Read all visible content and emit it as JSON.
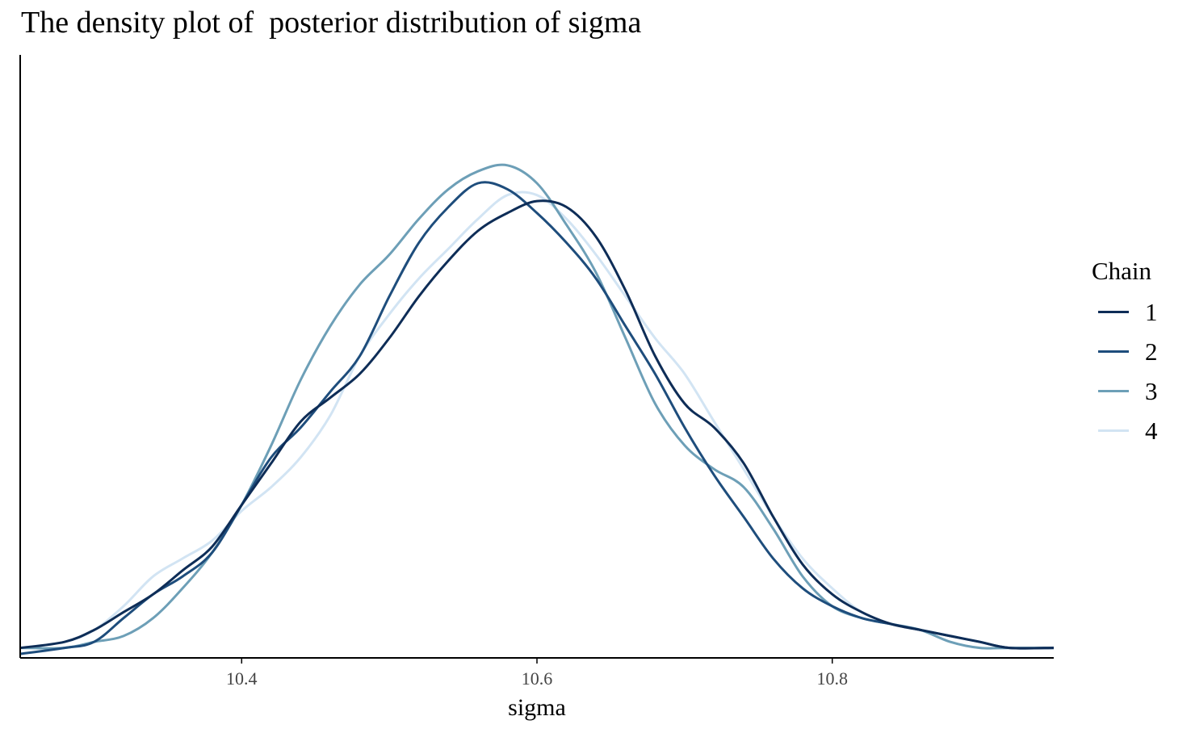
{
  "chart_data": {
    "type": "line",
    "title": "The density plot of  posterior distribution of sigma",
    "xlabel": "sigma",
    "ylabel": "",
    "xlim": [
      10.25,
      10.95
    ],
    "ylim": [
      0,
      1.0
    ],
    "x_ticks": [
      10.4,
      10.6,
      10.8
    ],
    "x_tick_labels": [
      "10.4",
      "10.6",
      "10.8"
    ],
    "grid": false,
    "legend": {
      "title": "Chain",
      "position": "right"
    },
    "series": [
      {
        "name": "1",
        "color": "#0e2d57",
        "x": [
          10.25,
          10.28,
          10.3,
          10.32,
          10.34,
          10.36,
          10.38,
          10.4,
          10.42,
          10.44,
          10.46,
          10.48,
          10.5,
          10.52,
          10.54,
          10.56,
          10.58,
          10.6,
          10.62,
          10.64,
          10.66,
          10.68,
          10.7,
          10.72,
          10.74,
          10.76,
          10.78,
          10.8,
          10.82,
          10.84,
          10.86,
          10.88,
          10.9,
          10.92,
          10.95
        ],
        "y": [
          0.01,
          0.02,
          0.04,
          0.07,
          0.1,
          0.14,
          0.18,
          0.25,
          0.32,
          0.39,
          0.43,
          0.47,
          0.53,
          0.6,
          0.66,
          0.71,
          0.74,
          0.76,
          0.75,
          0.7,
          0.61,
          0.5,
          0.42,
          0.38,
          0.32,
          0.23,
          0.15,
          0.1,
          0.07,
          0.05,
          0.04,
          0.03,
          0.02,
          0.01,
          0.01
        ]
      },
      {
        "name": "2",
        "color": "#1e4d7c",
        "x": [
          10.25,
          10.28,
          10.3,
          10.32,
          10.34,
          10.36,
          10.38,
          10.4,
          10.42,
          10.44,
          10.46,
          10.48,
          10.5,
          10.52,
          10.54,
          10.56,
          10.58,
          10.6,
          10.62,
          10.64,
          10.66,
          10.68,
          10.7,
          10.72,
          10.74,
          10.76,
          10.78,
          10.8,
          10.82,
          10.84,
          10.86,
          10.88,
          10.9,
          10.92,
          10.95
        ],
        "y": [
          0.0,
          0.01,
          0.02,
          0.06,
          0.1,
          0.13,
          0.17,
          0.25,
          0.33,
          0.38,
          0.44,
          0.5,
          0.6,
          0.69,
          0.75,
          0.79,
          0.78,
          0.74,
          0.69,
          0.63,
          0.55,
          0.47,
          0.38,
          0.3,
          0.23,
          0.16,
          0.11,
          0.08,
          0.06,
          0.05,
          0.04,
          0.03,
          0.02,
          0.01,
          0.01
        ]
      },
      {
        "name": "3",
        "color": "#6d9fb7",
        "x": [
          10.25,
          10.28,
          10.3,
          10.32,
          10.34,
          10.36,
          10.38,
          10.4,
          10.42,
          10.44,
          10.46,
          10.48,
          10.5,
          10.52,
          10.54,
          10.56,
          10.58,
          10.6,
          10.62,
          10.64,
          10.66,
          10.68,
          10.7,
          10.72,
          10.74,
          10.76,
          10.78,
          10.8,
          10.82,
          10.84,
          10.86,
          10.88,
          10.9,
          10.92,
          10.95
        ],
        "y": [
          0.01,
          0.01,
          0.02,
          0.03,
          0.06,
          0.11,
          0.17,
          0.25,
          0.35,
          0.46,
          0.55,
          0.62,
          0.67,
          0.73,
          0.78,
          0.81,
          0.82,
          0.79,
          0.72,
          0.64,
          0.53,
          0.42,
          0.35,
          0.31,
          0.28,
          0.21,
          0.13,
          0.08,
          0.06,
          0.05,
          0.04,
          0.02,
          0.01,
          0.01,
          0.01
        ]
      },
      {
        "name": "4",
        "color": "#d2e4f3",
        "x": [
          10.25,
          10.28,
          10.3,
          10.32,
          10.34,
          10.36,
          10.38,
          10.4,
          10.42,
          10.44,
          10.46,
          10.48,
          10.5,
          10.52,
          10.54,
          10.56,
          10.58,
          10.6,
          10.62,
          10.64,
          10.66,
          10.68,
          10.7,
          10.72,
          10.74,
          10.76,
          10.78,
          10.8,
          10.82,
          10.84,
          10.86,
          10.88,
          10.9,
          10.92,
          10.95
        ],
        "y": [
          0.01,
          0.02,
          0.04,
          0.08,
          0.13,
          0.16,
          0.19,
          0.24,
          0.28,
          0.33,
          0.4,
          0.5,
          0.57,
          0.63,
          0.68,
          0.73,
          0.77,
          0.77,
          0.73,
          0.67,
          0.6,
          0.53,
          0.47,
          0.39,
          0.31,
          0.23,
          0.16,
          0.11,
          0.07,
          0.05,
          0.04,
          0.02,
          0.01,
          0.01,
          0.01
        ]
      }
    ]
  }
}
